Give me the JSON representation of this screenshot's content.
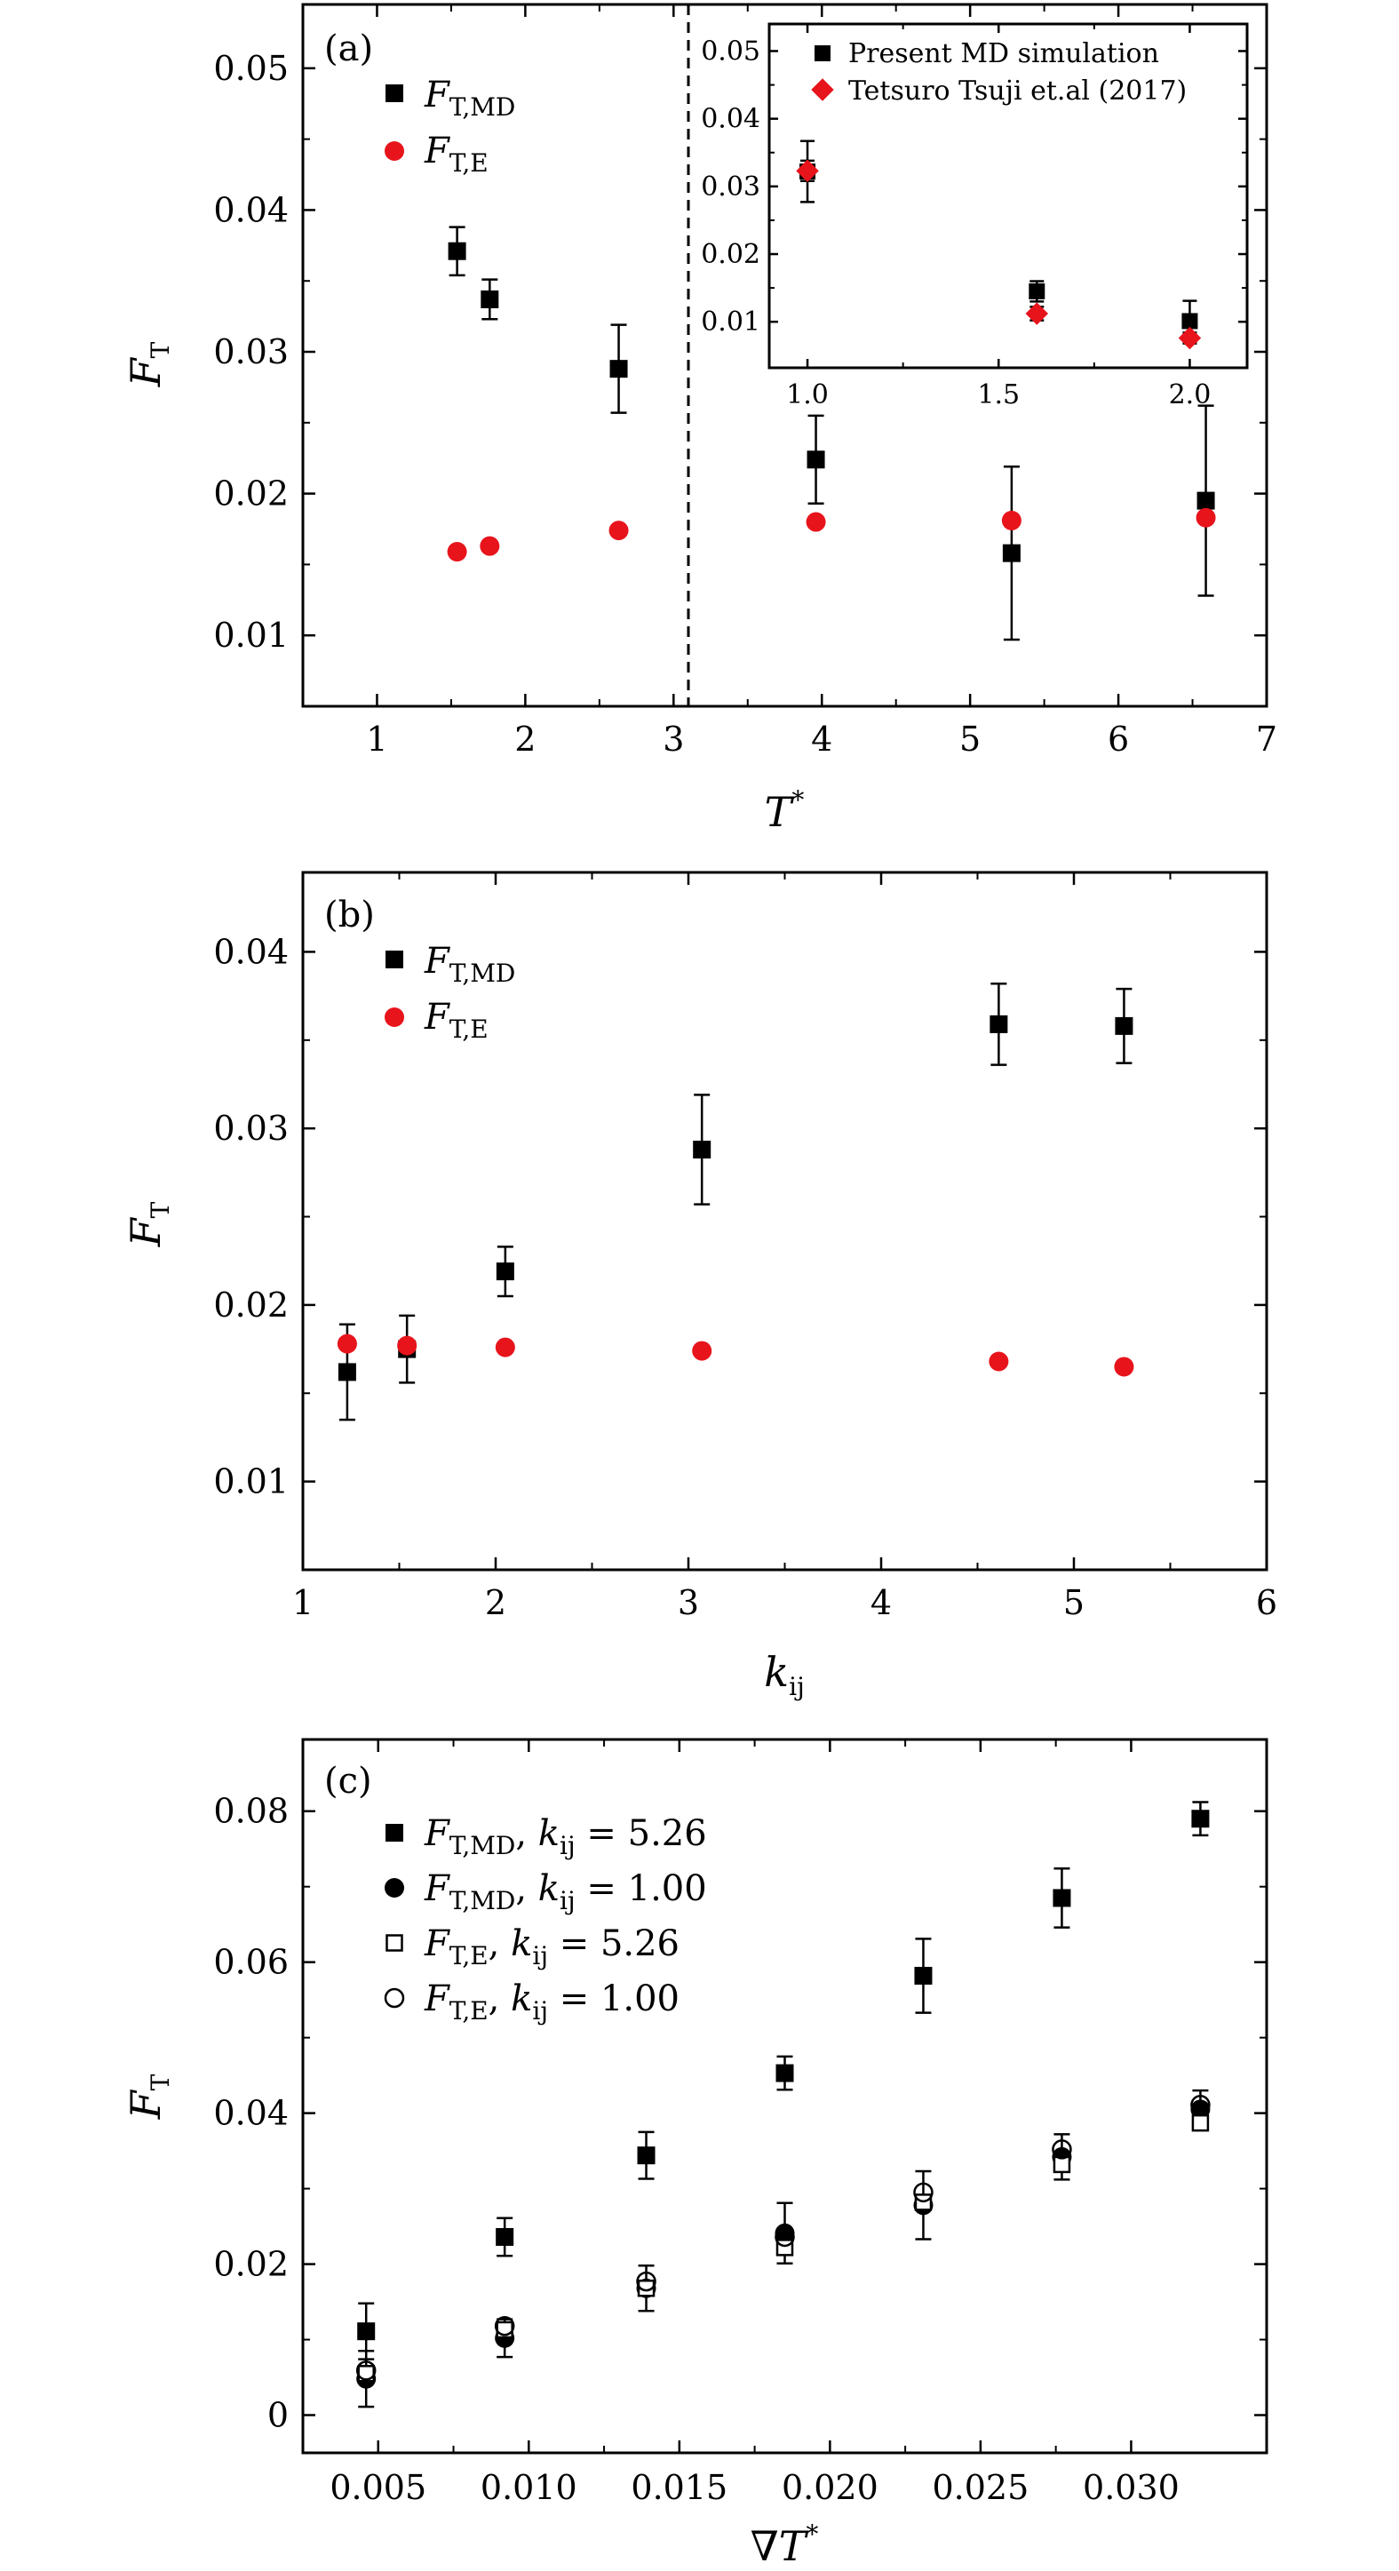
{
  "chart_data": [
    {
      "panel": "(a)",
      "type": "scatter",
      "xlabel": "T*",
      "ylabel": "F_T",
      "xlim": [
        0.5,
        7.0
      ],
      "ylim": [
        0.005,
        0.0545
      ],
      "xticks": [
        1,
        2,
        3,
        4,
        5,
        6,
        7
      ],
      "yticks": [
        0.01,
        0.02,
        0.03,
        0.04,
        0.05
      ],
      "ytick_labels": [
        "0.01",
        "0.02",
        "0.03",
        "0.04",
        "0.05"
      ],
      "vline_x": 3.1,
      "legend_position": "top-left",
      "series": [
        {
          "name": "F_T,MD",
          "marker": "square",
          "color": "#000000",
          "points": [
            {
              "x": 1.54,
              "y": 0.0371,
              "err": 0.0017
            },
            {
              "x": 1.76,
              "y": 0.0337,
              "err": 0.0014
            },
            {
              "x": 2.63,
              "y": 0.0288,
              "err": 0.0031
            },
            {
              "x": 3.96,
              "y": 0.0224,
              "err": 0.0031
            },
            {
              "x": 5.28,
              "y": 0.0158,
              "err": 0.0061
            },
            {
              "x": 6.59,
              "y": 0.0195,
              "err": 0.0067
            }
          ]
        },
        {
          "name": "F_T,E",
          "marker": "circle",
          "color": "#e8141c",
          "points": [
            {
              "x": 1.54,
              "y": 0.0159
            },
            {
              "x": 1.76,
              "y": 0.0163
            },
            {
              "x": 2.63,
              "y": 0.0174
            },
            {
              "x": 3.96,
              "y": 0.018
            },
            {
              "x": 5.28,
              "y": 0.0181
            },
            {
              "x": 6.59,
              "y": 0.0183
            }
          ]
        }
      ],
      "inset": {
        "xlim": [
          0.9,
          2.15
        ],
        "ylim": [
          0.0032,
          0.054
        ],
        "xticks": [
          1.0,
          1.5,
          2.0
        ],
        "xtick_labels": [
          "1.0",
          "1.5",
          "2.0"
        ],
        "yticks": [
          0.01,
          0.02,
          0.03,
          0.04,
          0.05
        ],
        "ytick_labels": [
          "0.01",
          "0.02",
          "0.03",
          "0.04",
          "0.05"
        ],
        "series": [
          {
            "name": "Present MD simulation",
            "marker": "square",
            "color": "#000000",
            "points": [
              {
                "x": 1.0,
                "y": 0.0322,
                "err": 0.0045
              },
              {
                "x": 1.6,
                "y": 0.0145,
                "err": 0.0015
              },
              {
                "x": 2.0,
                "y": 0.0101,
                "err": 0.003
              }
            ]
          },
          {
            "name": "Tetsuro Tsuji et.al (2017)",
            "marker": "diamond",
            "color": "#e8141c",
            "points": [
              {
                "x": 1.0,
                "y": 0.0323,
                "err": 0.0015
              },
              {
                "x": 1.6,
                "y": 0.0112,
                "err": 0.001
              },
              {
                "x": 2.0,
                "y": 0.0076,
                "err": 0.0008
              }
            ]
          }
        ]
      }
    },
    {
      "panel": "(b)",
      "type": "scatter",
      "xlabel": "k_ij",
      "ylabel": "F_T",
      "xlim": [
        1.0,
        6.0
      ],
      "ylim": [
        0.005,
        0.0445
      ],
      "xticks": [
        1,
        2,
        3,
        4,
        5,
        6
      ],
      "yticks": [
        0.01,
        0.02,
        0.03,
        0.04
      ],
      "ytick_labels": [
        "0.01",
        "0.02",
        "0.03",
        "0.04"
      ],
      "legend_position": "top-left",
      "series": [
        {
          "name": "F_T,MD",
          "marker": "square",
          "color": "#000000",
          "points": [
            {
              "x": 1.23,
              "y": 0.0162,
              "err": 0.0027
            },
            {
              "x": 1.54,
              "y": 0.0175,
              "err": 0.0019
            },
            {
              "x": 2.05,
              "y": 0.0219,
              "err": 0.0014
            },
            {
              "x": 3.07,
              "y": 0.0288,
              "err": 0.0031
            },
            {
              "x": 4.61,
              "y": 0.0359,
              "err": 0.0023
            },
            {
              "x": 5.26,
              "y": 0.0358,
              "err": 0.0021
            }
          ]
        },
        {
          "name": "F_T,E",
          "marker": "circle",
          "color": "#e8141c",
          "points": [
            {
              "x": 1.23,
              "y": 0.0178
            },
            {
              "x": 1.54,
              "y": 0.0177
            },
            {
              "x": 2.05,
              "y": 0.0176
            },
            {
              "x": 3.07,
              "y": 0.0174
            },
            {
              "x": 4.61,
              "y": 0.0168
            },
            {
              "x": 5.26,
              "y": 0.0165
            }
          ]
        }
      ]
    },
    {
      "panel": "(c)",
      "type": "scatter",
      "xlabel": "∇T*",
      "ylabel": "F_T",
      "xlim": [
        0.0025,
        0.0345
      ],
      "ylim": [
        -0.005,
        0.0895
      ],
      "xticks": [
        0.005,
        0.01,
        0.015,
        0.02,
        0.025,
        0.03
      ],
      "xtick_labels": [
        "0.005",
        "0.010",
        "0.015",
        "0.020",
        "0.025",
        "0.030"
      ],
      "yticks": [
        0,
        0.02,
        0.04,
        0.06,
        0.08
      ],
      "ytick_labels": [
        "0",
        "0.02",
        "0.04",
        "0.06",
        "0.08"
      ],
      "legend_position": "top-left",
      "series": [
        {
          "name": "F_T,MD, k_ij = 5.26",
          "marker": "square",
          "color": "#000000",
          "points": [
            {
              "x": 0.0046,
              "y": 0.0111,
              "err": 0.0037
            },
            {
              "x": 0.0092,
              "y": 0.0236,
              "err": 0.0025
            },
            {
              "x": 0.0139,
              "y": 0.0344,
              "err": 0.0031
            },
            {
              "x": 0.0185,
              "y": 0.0453,
              "err": 0.0022
            },
            {
              "x": 0.0231,
              "y": 0.0582,
              "err": 0.0049
            },
            {
              "x": 0.0277,
              "y": 0.0685,
              "err": 0.0039
            },
            {
              "x": 0.0323,
              "y": 0.079,
              "err": 0.0022
            }
          ]
        },
        {
          "name": "F_T,MD, k_ij = 1.00",
          "marker": "circle",
          "color": "#000000",
          "points": [
            {
              "x": 0.0046,
              "y": 0.0048,
              "err": 0.0037
            },
            {
              "x": 0.0092,
              "y": 0.0102,
              "err": 0.0025
            },
            {
              "x": 0.0139,
              "y": 0.0168,
              "err": 0.003
            },
            {
              "x": 0.0185,
              "y": 0.0241,
              "err": 0.004
            },
            {
              "x": 0.0231,
              "y": 0.0278,
              "err": 0.0045
            },
            {
              "x": 0.0277,
              "y": 0.0342,
              "err": 0.003
            },
            {
              "x": 0.0323,
              "y": 0.0405,
              "err": 0.0025
            }
          ]
        },
        {
          "name": "F_T,E, k_ij = 5.26",
          "marker": "square-open",
          "color": "#000000",
          "points": [
            {
              "x": 0.0046,
              "y": 0.0055
            },
            {
              "x": 0.0092,
              "y": 0.0113
            },
            {
              "x": 0.0139,
              "y": 0.0168
            },
            {
              "x": 0.0185,
              "y": 0.0222
            },
            {
              "x": 0.0231,
              "y": 0.0282
            },
            {
              "x": 0.0277,
              "y": 0.0332
            },
            {
              "x": 0.0323,
              "y": 0.0387
            }
          ]
        },
        {
          "name": "F_T,E, k_ij = 1.00",
          "marker": "circle-open",
          "color": "#000000",
          "points": [
            {
              "x": 0.0046,
              "y": 0.0059
            },
            {
              "x": 0.0092,
              "y": 0.0118
            },
            {
              "x": 0.0139,
              "y": 0.0177
            },
            {
              "x": 0.0185,
              "y": 0.0236
            },
            {
              "x": 0.0231,
              "y": 0.0295
            },
            {
              "x": 0.0277,
              "y": 0.0352
            },
            {
              "x": 0.0323,
              "y": 0.0411
            }
          ]
        }
      ]
    }
  ],
  "panel_a": {
    "label": "(a)",
    "legend_md": "F",
    "legend_md_sub": "T,MD",
    "legend_e": "F",
    "legend_e_sub": "T,E",
    "xlabel_main": "T",
    "xlabel_sup": "*",
    "ylabel_main": "F",
    "ylabel_sub": "T",
    "inset_legend_1": "Present MD simulation",
    "inset_legend_2": "Tetsuro Tsuji et.al (2017)"
  },
  "panel_b": {
    "label": "(b)",
    "legend_md": "F",
    "legend_md_sub": "T,MD",
    "legend_e": "F",
    "legend_e_sub": "T,E",
    "xlabel_main": "k",
    "xlabel_sub": "ij",
    "ylabel_main": "F",
    "ylabel_sub": "T"
  },
  "panel_c": {
    "label": "(c)",
    "legend": [
      {
        "f": "F",
        "sub": "T,MD",
        "k": "k",
        "ksub": "ij",
        "val": " = 5.26"
      },
      {
        "f": "F",
        "sub": "T,MD",
        "k": "k",
        "ksub": "ij",
        "val": " = 1.00"
      },
      {
        "f": "F",
        "sub": "T,E",
        "k": "k",
        "ksub": "ij",
        "val": " = 5.26"
      },
      {
        "f": "F",
        "sub": "T,E",
        "k": "k",
        "ksub": "ij",
        "val": " = 1.00"
      }
    ],
    "xlabel_main": "∇T",
    "xlabel_sup": "*",
    "ylabel_main": "F",
    "ylabel_sub": "T"
  }
}
